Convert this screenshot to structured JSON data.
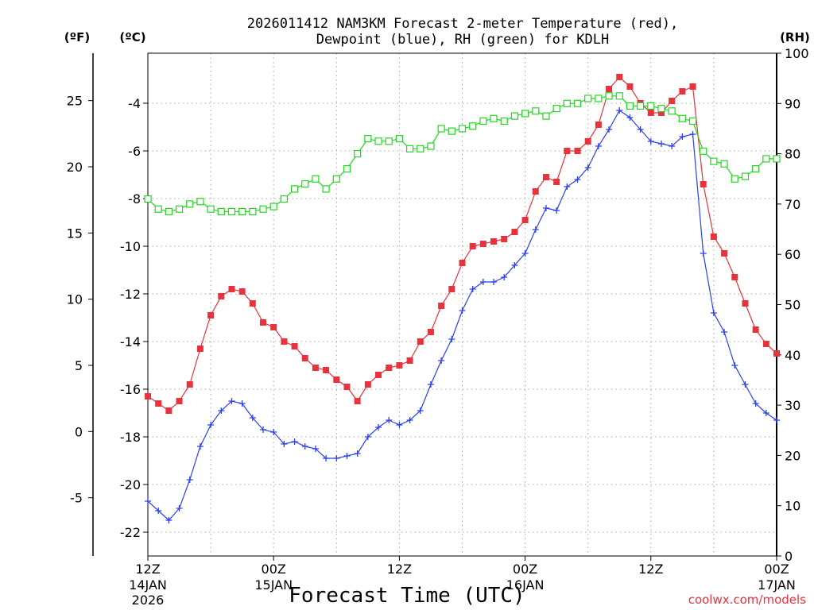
{
  "chart_data": {
    "type": "line",
    "title_line1": "2026011412 NAM3KM Forecast 2-meter Temperature (red),",
    "title_line2": "Dewpoint (blue), RH (green) for KDLH",
    "xlabel": "Forecast Time (UTC)",
    "credit": "coolwx.com/models",
    "unit_labels": {
      "fahrenheit": "(ºF)",
      "celsius": "(ºC)",
      "rh": "(RH)"
    },
    "x_hours_range": [
      0,
      60
    ],
    "celsius_range": [
      -23,
      -1.9
    ],
    "rh_range": [
      0,
      100
    ],
    "celsius_ticks": [
      "-22",
      "-20",
      "-18",
      "-16",
      "-14",
      "-12",
      "-10",
      "-8",
      "-6",
      "-4"
    ],
    "fahrenheit_ticks": [
      "-5",
      "0",
      "5",
      "10",
      "15",
      "20",
      "25"
    ],
    "rh_ticks": [
      "0",
      "10",
      "20",
      "30",
      "40",
      "50",
      "60",
      "70",
      "80",
      "90",
      "100"
    ],
    "x_ticks": [
      {
        "hour": 0,
        "label": "12Z",
        "date": "14JAN",
        "year": "2026"
      },
      {
        "hour": 12,
        "label": "00Z",
        "date": "15JAN",
        "year": ""
      },
      {
        "hour": 24,
        "label": "12Z",
        "date": "",
        "year": ""
      },
      {
        "hour": 36,
        "label": "00Z",
        "date": "16JAN",
        "year": ""
      },
      {
        "hour": 48,
        "label": "12Z",
        "date": "",
        "year": ""
      },
      {
        "hour": 60,
        "label": "00Z",
        "date": "17JAN",
        "year": ""
      }
    ],
    "hours": [
      0,
      1,
      2,
      3,
      4,
      5,
      6,
      7,
      8,
      9,
      10,
      11,
      12,
      13,
      14,
      15,
      16,
      17,
      18,
      19,
      20,
      21,
      22,
      23,
      24,
      25,
      26,
      27,
      28,
      29,
      30,
      31,
      32,
      33,
      34,
      35,
      36,
      37,
      38,
      39,
      40,
      41,
      42,
      43,
      44,
      45,
      46,
      47,
      48,
      49,
      50,
      51,
      52,
      53,
      54,
      55,
      56,
      57,
      58,
      59,
      60
    ],
    "series": [
      {
        "name": "Temperature",
        "unit": "C",
        "color": "#e8323c",
        "marker": "filled-square",
        "values": [
          -16.3,
          -16.6,
          -16.9,
          -16.5,
          -15.8,
          -14.3,
          -12.9,
          -12.1,
          -11.8,
          -11.9,
          -12.4,
          -13.2,
          -13.4,
          -14.0,
          -14.2,
          -14.7,
          -15.1,
          -15.2,
          -15.6,
          -15.9,
          -16.5,
          -15.8,
          -15.4,
          -15.1,
          -15.0,
          -14.8,
          -14.0,
          -13.6,
          -12.5,
          -11.8,
          -10.7,
          -10.0,
          -9.9,
          -9.8,
          -9.7,
          -9.4,
          -8.9,
          -7.7,
          -7.1,
          -7.3,
          -6.0,
          -6.0,
          -5.6,
          -4.9,
          -3.4,
          -2.9,
          -3.3,
          -4.0,
          -4.4,
          -4.4,
          -3.9,
          -3.5,
          -3.3,
          -7.4,
          -9.6,
          -10.3,
          -11.3,
          -12.4,
          -13.5,
          -14.1,
          -14.5
        ]
      },
      {
        "name": "Dewpoint",
        "unit": "C",
        "color": "#2a40f0",
        "marker": "plus",
        "values": [
          -20.7,
          -21.1,
          -21.5,
          -21.0,
          -19.8,
          -18.4,
          -17.5,
          -16.9,
          -16.5,
          -16.6,
          -17.2,
          -17.7,
          -17.8,
          -18.3,
          -18.2,
          -18.4,
          -18.5,
          -18.9,
          -18.9,
          -18.8,
          -18.7,
          -18.0,
          -17.6,
          -17.3,
          -17.5,
          -17.3,
          -16.9,
          -15.8,
          -14.8,
          -13.9,
          -12.7,
          -11.8,
          -11.5,
          -11.5,
          -11.3,
          -10.8,
          -10.3,
          -9.3,
          -8.4,
          -8.5,
          -7.5,
          -7.2,
          -6.7,
          -5.8,
          -5.1,
          -4.3,
          -4.6,
          -5.1,
          -5.6,
          -5.7,
          -5.8,
          -5.4,
          -5.3,
          -10.3,
          -12.8,
          -13.6,
          -15.0,
          -15.8,
          -16.6,
          -17.0,
          -17.3
        ]
      },
      {
        "name": "RH",
        "unit": "%",
        "color": "#22d81e",
        "marker": "open-square",
        "values": [
          71,
          69,
          68.5,
          69,
          70,
          70.5,
          69,
          68.5,
          68.5,
          68.5,
          68.5,
          69,
          69.5,
          71,
          73,
          74,
          75,
          73,
          75,
          77,
          80,
          83,
          82.5,
          82.5,
          83,
          81,
          81,
          81.5,
          85,
          84.5,
          85,
          85.5,
          86.5,
          87,
          86.5,
          87.5,
          88,
          88.5,
          87.5,
          89,
          90,
          90,
          91,
          91,
          91.5,
          91.5,
          89.5,
          89.5,
          89.5,
          89,
          88.5,
          87,
          86.5,
          80.5,
          78.5,
          78,
          75,
          75.5,
          77,
          79,
          79
        ]
      }
    ]
  }
}
